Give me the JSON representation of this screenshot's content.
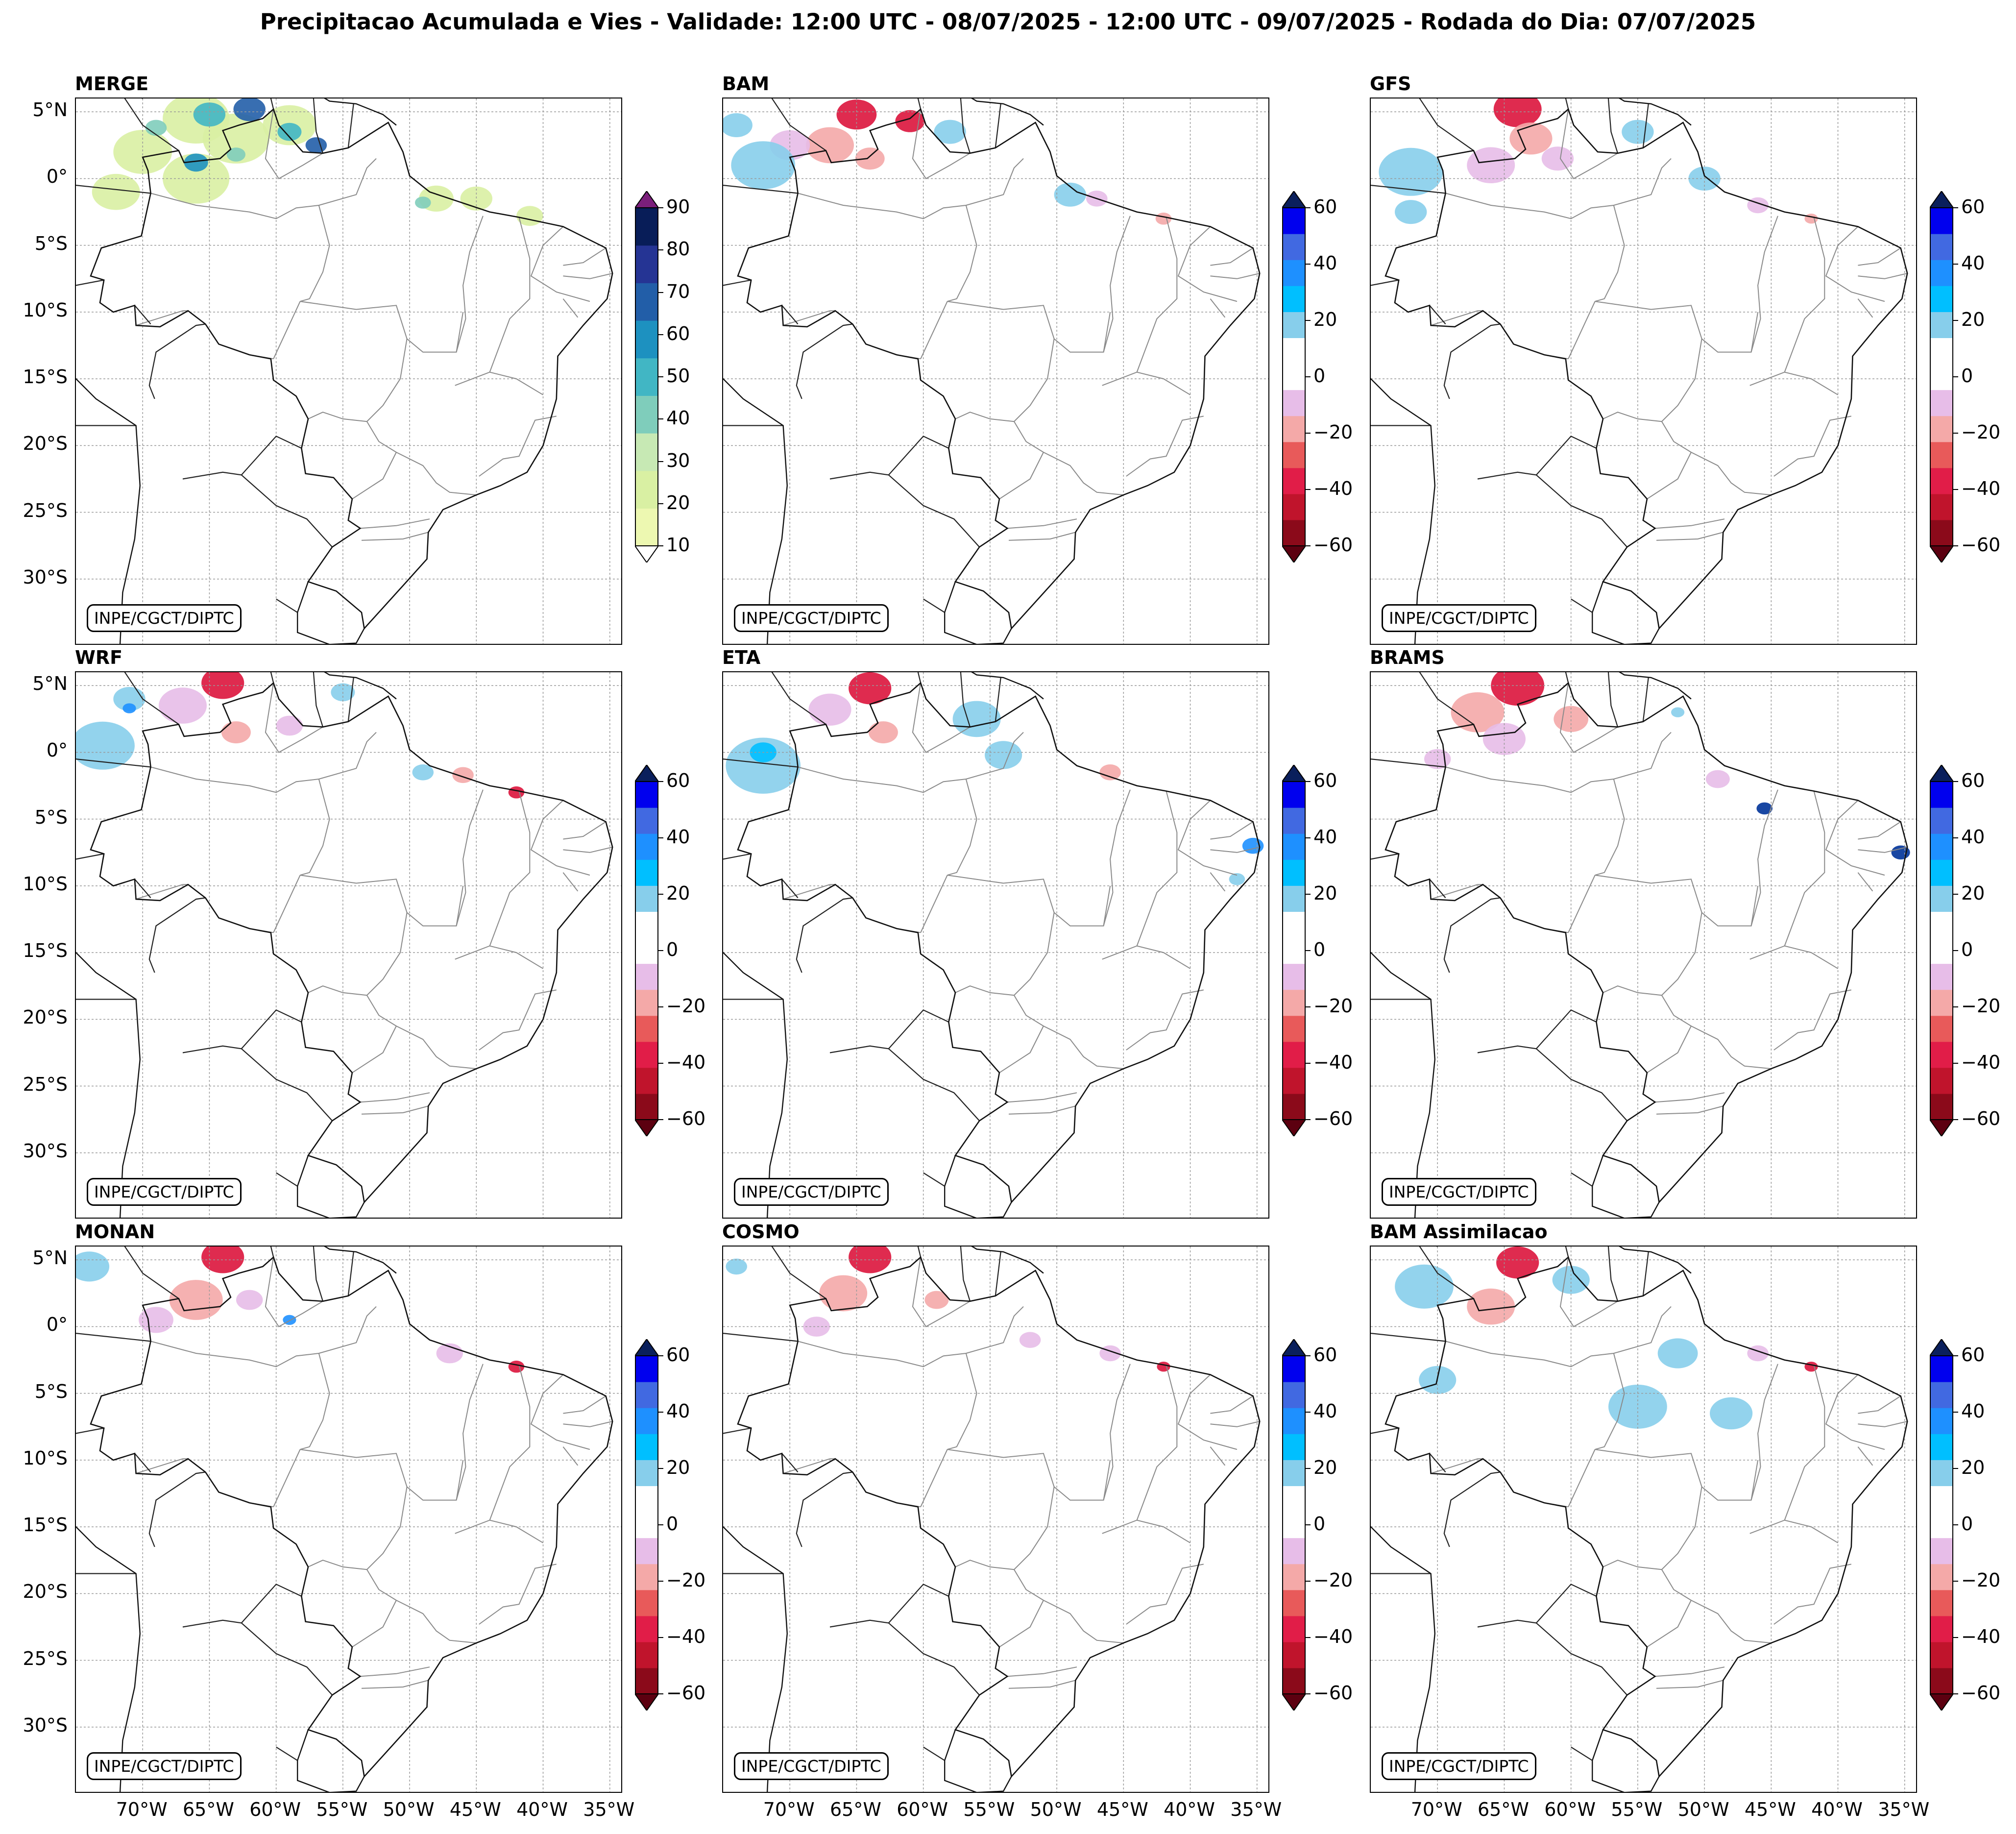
{
  "title": "Precipitacao Acumulada e Vies - Validade: 12:00 UTC - 08/07/2025 - 12:00 UTC - 09/07/2025 - Rodada do Dia: 07/07/2025",
  "credit": "INPE/CGCT/DIPTC",
  "panels": [
    {
      "name": "MERGE",
      "scale": "precip",
      "fields": [
        {
          "lon": -66,
          "lat": 4.5,
          "r": 2.5,
          "c": "#d9f0a3"
        },
        {
          "lon": -70,
          "lat": 2,
          "r": 2.2,
          "c": "#d9f0a3"
        },
        {
          "lon": -63,
          "lat": 3,
          "r": 2.5,
          "c": "#d9f0a3"
        },
        {
          "lon": -59,
          "lat": 4,
          "r": 2,
          "c": "#d9f0a3"
        },
        {
          "lon": -66,
          "lat": 0,
          "r": 2.5,
          "c": "#d9f0a3"
        },
        {
          "lon": -72,
          "lat": -1,
          "r": 1.8,
          "c": "#d9f0a3"
        },
        {
          "lon": -48,
          "lat": -1.5,
          "r": 1.3,
          "c": "#d9f0a3"
        },
        {
          "lon": -45,
          "lat": -1.5,
          "r": 1.2,
          "c": "#d9f0a3"
        },
        {
          "lon": -41,
          "lat": -2.8,
          "r": 1,
          "c": "#d9f0a3"
        },
        {
          "lon": -65,
          "lat": 4.8,
          "r": 1.2,
          "c": "#41b6c4"
        },
        {
          "lon": -62,
          "lat": 5.2,
          "r": 1.2,
          "c": "#225ea8"
        },
        {
          "lon": -66,
          "lat": 1.2,
          "r": 0.9,
          "c": "#1d91c0"
        },
        {
          "lon": -59,
          "lat": 3.5,
          "r": 0.9,
          "c": "#41b6c4"
        },
        {
          "lon": -57,
          "lat": 2.5,
          "r": 0.8,
          "c": "#225ea8"
        },
        {
          "lon": -63,
          "lat": 1.8,
          "r": 0.7,
          "c": "#7fcdbb"
        },
        {
          "lon": -49,
          "lat": -1.8,
          "r": 0.6,
          "c": "#7fcdbb"
        },
        {
          "lon": -69,
          "lat": 3.8,
          "r": 0.8,
          "c": "#7fcdbb"
        }
      ]
    },
    {
      "name": "BAM",
      "scale": "bias",
      "fields": [
        {
          "lon": -65,
          "lat": 4.8,
          "r": 1.5,
          "c": "#dc143c"
        },
        {
          "lon": -61,
          "lat": 4.3,
          "r": 1.1,
          "c": "#dc143c"
        },
        {
          "lon": -67,
          "lat": 2.5,
          "r": 1.8,
          "c": "#f4a9a8"
        },
        {
          "lon": -64,
          "lat": 1.5,
          "r": 1.1,
          "c": "#f4a9a8"
        },
        {
          "lon": -70,
          "lat": 2.5,
          "r": 1.5,
          "c": "#e7bde8"
        },
        {
          "lon": -72,
          "lat": 1,
          "r": 2.4,
          "c": "#87ceeb"
        },
        {
          "lon": -74,
          "lat": 4,
          "r": 1.2,
          "c": "#87ceeb"
        },
        {
          "lon": -58,
          "lat": 3.5,
          "r": 1.2,
          "c": "#87ceeb"
        },
        {
          "lon": -49,
          "lat": -1.2,
          "r": 1.2,
          "c": "#87ceeb"
        },
        {
          "lon": -47,
          "lat": -1.5,
          "r": 0.8,
          "c": "#e7bde8"
        },
        {
          "lon": -42,
          "lat": -3,
          "r": 0.6,
          "c": "#f4a9a8"
        }
      ]
    },
    {
      "name": "GFS",
      "scale": "bias",
      "fields": [
        {
          "lon": -64,
          "lat": 5.2,
          "r": 1.8,
          "c": "#dc143c"
        },
        {
          "lon": -63,
          "lat": 3,
          "r": 1.6,
          "c": "#f4a9a8"
        },
        {
          "lon": -66,
          "lat": 1,
          "r": 1.8,
          "c": "#e7bde8"
        },
        {
          "lon": -61,
          "lat": 1.5,
          "r": 1.2,
          "c": "#e7bde8"
        },
        {
          "lon": -72,
          "lat": 0.5,
          "r": 2.4,
          "c": "#87ceeb"
        },
        {
          "lon": -72,
          "lat": -2.5,
          "r": 1.2,
          "c": "#87ceeb"
        },
        {
          "lon": -55,
          "lat": 3.5,
          "r": 1.2,
          "c": "#87ceeb"
        },
        {
          "lon": -50,
          "lat": 0,
          "r": 1.2,
          "c": "#87ceeb"
        },
        {
          "lon": -46,
          "lat": -2,
          "r": 0.8,
          "c": "#e7bde8"
        },
        {
          "lon": -42,
          "lat": -3,
          "r": 0.5,
          "c": "#f4a9a8"
        }
      ]
    },
    {
      "name": "WRF",
      "scale": "bias",
      "fields": [
        {
          "lon": -64,
          "lat": 5.2,
          "r": 1.6,
          "c": "#dc143c"
        },
        {
          "lon": -67,
          "lat": 3.5,
          "r": 1.8,
          "c": "#e7bde8"
        },
        {
          "lon": -63,
          "lat": 1.5,
          "r": 1.1,
          "c": "#f4a9a8"
        },
        {
          "lon": -59,
          "lat": 2,
          "r": 1,
          "c": "#e7bde8"
        },
        {
          "lon": -73,
          "lat": 0.5,
          "r": 2.4,
          "c": "#87ceeb"
        },
        {
          "lon": -71,
          "lat": 4,
          "r": 1.2,
          "c": "#87ceeb"
        },
        {
          "lon": -71,
          "lat": 3.3,
          "r": 0.5,
          "c": "#1e90ff"
        },
        {
          "lon": -55,
          "lat": 4.5,
          "r": 0.9,
          "c": "#87ceeb"
        },
        {
          "lon": -49,
          "lat": -1.5,
          "r": 0.8,
          "c": "#87ceeb"
        },
        {
          "lon": -46,
          "lat": -1.7,
          "r": 0.8,
          "c": "#f4a9a8"
        },
        {
          "lon": -42,
          "lat": -3,
          "r": 0.6,
          "c": "#dc143c"
        }
      ]
    },
    {
      "name": "ETA",
      "scale": "bias",
      "fields": [
        {
          "lon": -64,
          "lat": 4.8,
          "r": 1.6,
          "c": "#dc143c"
        },
        {
          "lon": -67,
          "lat": 3.2,
          "r": 1.6,
          "c": "#e7bde8"
        },
        {
          "lon": -63,
          "lat": 1.5,
          "r": 1.1,
          "c": "#f4a9a8"
        },
        {
          "lon": -72,
          "lat": -1,
          "r": 2.8,
          "c": "#87ceeb"
        },
        {
          "lon": -72,
          "lat": 0,
          "r": 1,
          "c": "#00bfff"
        },
        {
          "lon": -56,
          "lat": 2.5,
          "r": 1.8,
          "c": "#87ceeb"
        },
        {
          "lon": -54,
          "lat": -0.2,
          "r": 1.4,
          "c": "#87ceeb"
        },
        {
          "lon": -46,
          "lat": -1.5,
          "r": 0.8,
          "c": "#f4a9a8"
        },
        {
          "lon": -35.3,
          "lat": -7,
          "r": 0.8,
          "c": "#1e90ff"
        },
        {
          "lon": -36.5,
          "lat": -9.5,
          "r": 0.6,
          "c": "#87ceeb"
        }
      ]
    },
    {
      "name": "BRAMS",
      "scale": "bias",
      "fields": [
        {
          "lon": -64,
          "lat": 5,
          "r": 2,
          "c": "#dc143c"
        },
        {
          "lon": -67,
          "lat": 3,
          "r": 2,
          "c": "#f4a9a8"
        },
        {
          "lon": -65,
          "lat": 1,
          "r": 1.6,
          "c": "#e7bde8"
        },
        {
          "lon": -60,
          "lat": 2.5,
          "r": 1.3,
          "c": "#f4a9a8"
        },
        {
          "lon": -70,
          "lat": -0.5,
          "r": 1,
          "c": "#e7bde8"
        },
        {
          "lon": -49,
          "lat": -2,
          "r": 0.9,
          "c": "#e7bde8"
        },
        {
          "lon": -45.5,
          "lat": -4.2,
          "r": 0.6,
          "c": "#003399"
        },
        {
          "lon": -35.3,
          "lat": -7.5,
          "r": 0.7,
          "c": "#003399"
        },
        {
          "lon": -52,
          "lat": 3,
          "r": 0.5,
          "c": "#87ceeb"
        }
      ]
    },
    {
      "name": "MONAN",
      "scale": "bias",
      "fields": [
        {
          "lon": -64,
          "lat": 5.2,
          "r": 1.6,
          "c": "#dc143c"
        },
        {
          "lon": -66,
          "lat": 2,
          "r": 2,
          "c": "#f4a9a8"
        },
        {
          "lon": -69,
          "lat": 0.5,
          "r": 1.3,
          "c": "#e7bde8"
        },
        {
          "lon": -62,
          "lat": 2,
          "r": 1,
          "c": "#e7bde8"
        },
        {
          "lon": -74,
          "lat": 4.5,
          "r": 1.5,
          "c": "#87ceeb"
        },
        {
          "lon": -59,
          "lat": 0.5,
          "r": 0.5,
          "c": "#1e90ff"
        },
        {
          "lon": -47,
          "lat": -2,
          "r": 1,
          "c": "#e7bde8"
        },
        {
          "lon": -42,
          "lat": -3,
          "r": 0.6,
          "c": "#dc143c"
        }
      ]
    },
    {
      "name": "COSMO",
      "scale": "bias",
      "fields": [
        {
          "lon": -64,
          "lat": 5.2,
          "r": 1.6,
          "c": "#dc143c"
        },
        {
          "lon": -66,
          "lat": 2.5,
          "r": 1.8,
          "c": "#f4a9a8"
        },
        {
          "lon": -68,
          "lat": 0,
          "r": 1,
          "c": "#e7bde8"
        },
        {
          "lon": -59,
          "lat": 2,
          "r": 0.9,
          "c": "#f4a9a8"
        },
        {
          "lon": -74,
          "lat": 4.5,
          "r": 0.8,
          "c": "#87ceeb"
        },
        {
          "lon": -52,
          "lat": -1,
          "r": 0.8,
          "c": "#e7bde8"
        },
        {
          "lon": -46,
          "lat": -2,
          "r": 0.8,
          "c": "#e7bde8"
        },
        {
          "lon": -42,
          "lat": -3,
          "r": 0.5,
          "c": "#dc143c"
        }
      ]
    },
    {
      "name": "BAM Assimilacao",
      "scale": "bias",
      "fields": [
        {
          "lon": -64,
          "lat": 4.8,
          "r": 1.6,
          "c": "#dc143c"
        },
        {
          "lon": -66,
          "lat": 1.5,
          "r": 1.8,
          "c": "#f4a9a8"
        },
        {
          "lon": -71,
          "lat": 3,
          "r": 2.2,
          "c": "#87ceeb"
        },
        {
          "lon": -60,
          "lat": 3.5,
          "r": 1.4,
          "c": "#87ceeb"
        },
        {
          "lon": -55,
          "lat": -6,
          "r": 2.2,
          "c": "#87ceeb"
        },
        {
          "lon": -48,
          "lat": -6.5,
          "r": 1.6,
          "c": "#87ceeb"
        },
        {
          "lon": -70,
          "lat": -4,
          "r": 1.4,
          "c": "#87ceeb"
        },
        {
          "lon": -52,
          "lat": -2,
          "r": 1.5,
          "c": "#87ceeb"
        },
        {
          "lon": -46,
          "lat": -2,
          "r": 0.8,
          "c": "#e7bde8"
        },
        {
          "lon": -42,
          "lat": -3,
          "r": 0.5,
          "c": "#dc143c"
        }
      ]
    }
  ],
  "lat_ticks": [
    {
      "value": 5,
      "label": "5°N"
    },
    {
      "value": 0,
      "label": "0°"
    },
    {
      "value": -5,
      "label": "5°S"
    },
    {
      "value": -10,
      "label": "10°S"
    },
    {
      "value": -15,
      "label": "15°S"
    },
    {
      "value": -20,
      "label": "20°S"
    },
    {
      "value": -25,
      "label": "25°S"
    },
    {
      "value": -30,
      "label": "30°S"
    }
  ],
  "lon_ticks": [
    {
      "value": -70,
      "label": "70°W"
    },
    {
      "value": -65,
      "label": "65°W"
    },
    {
      "value": -60,
      "label": "60°W"
    },
    {
      "value": -55,
      "label": "55°W"
    },
    {
      "value": -50,
      "label": "50°W"
    },
    {
      "value": -45,
      "label": "45°W"
    },
    {
      "value": -40,
      "label": "40°W"
    },
    {
      "value": -35,
      "label": "35°W"
    }
  ],
  "extent": {
    "lon_min": -75,
    "lon_max": -34,
    "lat_min": -35,
    "lat_max": 6
  },
  "scales": {
    "precip": {
      "ticks": [
        "90",
        "80",
        "70",
        "60",
        "50",
        "40",
        "30",
        "20",
        "10"
      ],
      "colors": [
        "#edf8b1",
        "#d9f0a3",
        "#c7e9b4",
        "#7fcdbb",
        "#41b6c4",
        "#1d91c0",
        "#225ea8",
        "#253494",
        "#081d58"
      ],
      "extend_top": "#7b1f7b",
      "extend_bottom": "#ffffff"
    },
    "bias": {
      "ticks": [
        "60",
        "40",
        "20",
        "0",
        "−20",
        "−40",
        "−60"
      ],
      "colors": [
        "#8b0a1a",
        "#c0142c",
        "#e11d48",
        "#e85a5a",
        "#f4a9a8",
        "#e7bde8",
        "#ffffff",
        "#ffffff",
        "#87ceeb",
        "#00bfff",
        "#1e90ff",
        "#4169e1",
        "#0000ee"
      ],
      "extend_top": "#0a1f5c",
      "extend_bottom": "#5c0010"
    }
  }
}
